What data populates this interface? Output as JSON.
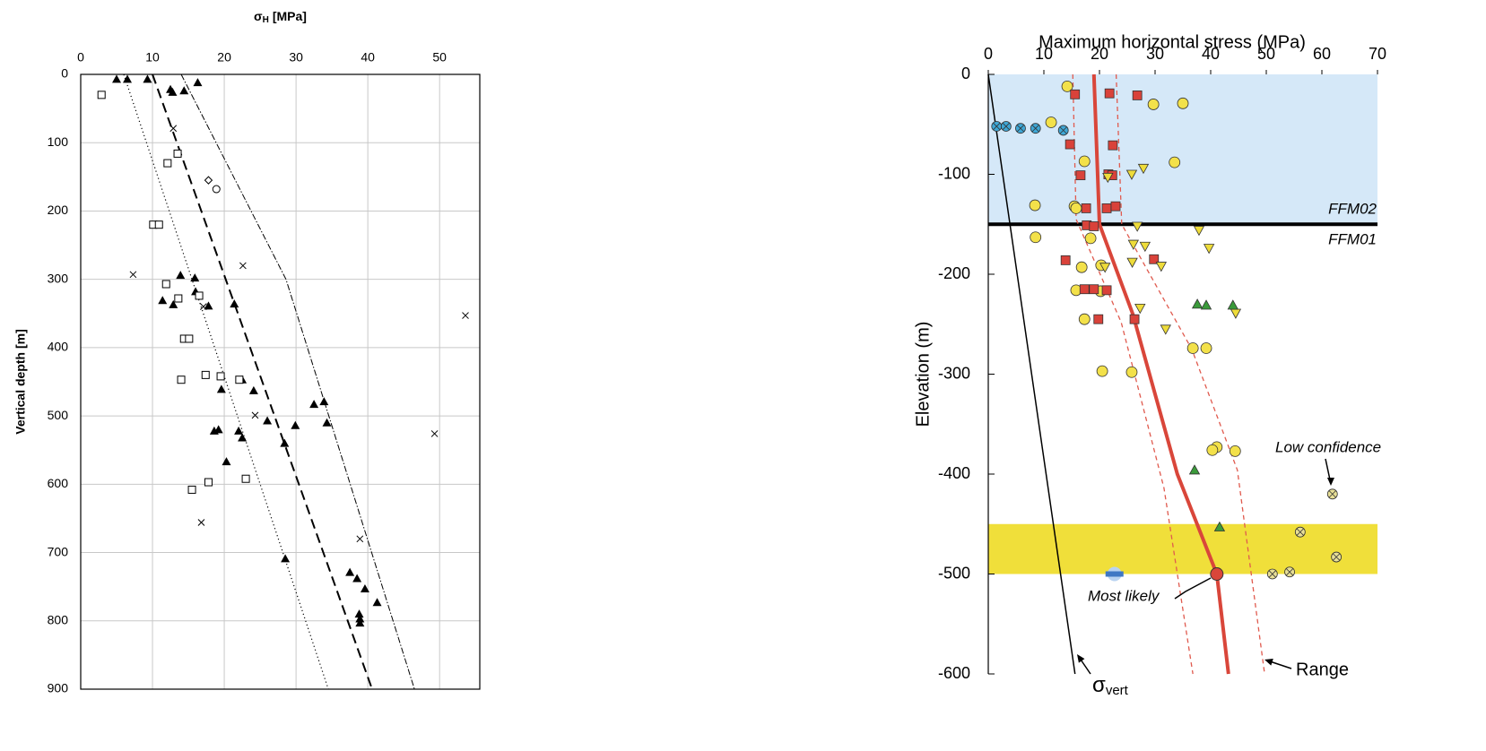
{
  "chart_data": [
    {
      "type": "scatter",
      "x_label": {
        "symbol": "σ",
        "subscript": "H",
        "unit": "[MPa]"
      },
      "y_label": "Vertical depth [m]",
      "xlim": [
        0,
        55.6
      ],
      "xticks": [
        0,
        10,
        20,
        30,
        40,
        50
      ],
      "ylim": [
        0,
        900
      ],
      "yticks": [
        0,
        100,
        200,
        300,
        400,
        500,
        600,
        700,
        800,
        900
      ],
      "y_inverted": true,
      "x_axis_position": "top",
      "grid": true,
      "series": [
        {
          "marker": "triangle",
          "color": "#000000",
          "x": [
            5,
            6.5,
            9.3,
            12.5,
            12.8,
            14.4,
            16.3,
            13.9,
            15.9,
            11.4,
            12.9,
            16,
            17.8,
            21.4,
            22.5,
            24.1,
            19.6,
            26,
            29.9,
            32.5,
            33.9,
            34.3,
            28.4,
            18.6,
            19.2,
            22,
            22.5,
            20.3,
            28.5,
            37.5,
            38.5,
            39.6,
            41.3,
            38.8,
            38.9,
            38.9
          ],
          "values": [
            7,
            7,
            7,
            22,
            26,
            24,
            12,
            294,
            298,
            331,
            337,
            318,
            339,
            336,
            447,
            463,
            461,
            507,
            514,
            483,
            479,
            510,
            540,
            522,
            520,
            522,
            532,
            567,
            709,
            729,
            738,
            753,
            773,
            790,
            797,
            803
          ]
        },
        {
          "marker": "square-open",
          "color": "#000000",
          "x": [
            2.9,
            12.1,
            13.5,
            10.1,
            10.9,
            11.9,
            13.6,
            16.5,
            14.4,
            15.1,
            14,
            17.4,
            19.5,
            22.1,
            23,
            17.8,
            15.5
          ],
          "values": [
            30,
            130,
            116,
            220,
            220,
            307,
            328,
            324,
            387,
            387,
            447,
            440,
            442,
            447,
            592,
            597,
            608
          ]
        },
        {
          "marker": "x",
          "color": "#000000",
          "x": [
            12.9,
            7.3,
            17.1,
            22.6,
            24.3,
            53.6,
            49.3,
            16.8,
            38.9
          ],
          "values": [
            79,
            293,
            340,
            280,
            499,
            353,
            526,
            656,
            680
          ]
        },
        {
          "marker": "diamond-open",
          "color": "#000000",
          "x": [
            17.8
          ],
          "values": [
            155
          ]
        },
        {
          "marker": "circle-open",
          "color": "#000000",
          "x": [
            18.9
          ],
          "values": [
            168
          ]
        },
        {
          "line": "dashed",
          "color": "#000000",
          "x": [
            10,
            40.6
          ],
          "values": [
            0,
            900
          ]
        },
        {
          "line": "dotted",
          "color": "#000000",
          "x": [
            6,
            34.5
          ],
          "values": [
            0,
            900
          ]
        },
        {
          "line": "dashdot",
          "color": "#000000",
          "x": [
            14,
            28.6,
            46.5
          ],
          "values": [
            0,
            300,
            900
          ]
        }
      ]
    },
    {
      "type": "scatter",
      "title": "Maximum horizontal stress (MPa)",
      "y_label": "Elevation (m)",
      "xlim": [
        0,
        70
      ],
      "xticks": [
        0,
        10,
        20,
        30,
        40,
        50,
        60,
        70
      ],
      "ylim": [
        -600,
        0
      ],
      "yticks": [
        0,
        -100,
        -200,
        -300,
        -400,
        -500,
        -600
      ],
      "x_axis_position": "top",
      "grid": false,
      "bands": [
        {
          "from": 0,
          "to": -150,
          "color": "#d5e8f8"
        },
        {
          "from": -450,
          "to": -500,
          "color": "#f0df3a"
        }
      ],
      "hlines": [
        {
          "value": -150,
          "color": "#000000"
        }
      ],
      "series": [
        {
          "line": "solid",
          "color": "#000000",
          "x": [
            0,
            15.6
          ],
          "values": [
            0,
            -600
          ]
        },
        {
          "line": "red-dashed",
          "color": "#e05a4e",
          "x": [
            15.2,
            15.8,
            23.9,
            31.6,
            36.8
          ],
          "values": [
            0,
            -145,
            -248,
            -414,
            -600
          ]
        },
        {
          "line": "red-dashed",
          "color": "#e05a4e",
          "x": [
            23,
            24,
            36.6,
            44.8,
            49.7
          ],
          "values": [
            0,
            -150,
            -275,
            -396,
            -600
          ]
        },
        {
          "line": "thick",
          "color": "#d9463a",
          "x": [
            19,
            20,
            26,
            34,
            41.1,
            43.2
          ],
          "values": [
            0,
            -150,
            -240,
            -400,
            -500,
            -600
          ]
        },
        {
          "marker": "circle",
          "color": "#f3e14a",
          "x": [
            14.2,
            29.7,
            35,
            11.3,
            17.3,
            33.5,
            8.4,
            15.5,
            15.8,
            8.5,
            18.4,
            16.8,
            20.3,
            15.8,
            20.2,
            17.3,
            20.5,
            25.8,
            36.8,
            39.2,
            41.1,
            40.3,
            44.4
          ],
          "values": [
            -12,
            -30,
            -29,
            -48,
            -87,
            -88,
            -131,
            -132,
            -134,
            -163,
            -164,
            -193,
            -191,
            -216,
            -217,
            -245,
            -297,
            -298,
            -274,
            -274,
            -373,
            -376,
            -377
          ]
        },
        {
          "marker": "square",
          "color": "#d9423a",
          "x": [
            15.6,
            21.8,
            26.8,
            14.7,
            22.4,
            16.6,
            21.6,
            22.3,
            17.6,
            21.3,
            22.9,
            17.7,
            19,
            13.9,
            29.8,
            17.3,
            19,
            21.3,
            19.8,
            26.3
          ],
          "values": [
            -20,
            -19,
            -21,
            -70,
            -71,
            -101,
            -100,
            -101,
            -134,
            -134,
            -132,
            -151,
            -152,
            -186,
            -185,
            -215,
            -215,
            -216,
            -245,
            -245
          ]
        },
        {
          "marker": "triangle-down",
          "color": "#eedc3a",
          "x": [
            21.5,
            25.8,
            27.9,
            26.8,
            26.1,
            28.2,
            37.9,
            39.7,
            21,
            25.9,
            31.1,
            27.3,
            31.9,
            44.5
          ],
          "values": [
            -103,
            -100,
            -94,
            -152,
            -170,
            -172,
            -156,
            -174,
            -193,
            -188,
            -192,
            -234,
            -255,
            -239
          ]
        },
        {
          "marker": "triangle",
          "color": "#3a9a3a",
          "x": [
            37.6,
            39.2,
            44,
            37.1,
            41.6
          ],
          "values": [
            -230,
            -231,
            -231,
            -396,
            -453
          ]
        },
        {
          "marker": "circle-x",
          "color": "#3fa7d6",
          "x": [
            1.5,
            3.2,
            5.8,
            8.5,
            13.5
          ],
          "values": [
            -52,
            -52,
            -54,
            -54,
            -56
          ]
        },
        {
          "marker": "circle-x",
          "color": "#e8df96",
          "x": [
            61.9,
            56.1,
            62.6,
            51.1,
            54.2
          ],
          "values": [
            -420,
            -458,
            -483,
            -500,
            -498
          ]
        },
        {
          "marker": "bar",
          "color": "#3f78c4",
          "x": [
            22.7
          ],
          "values": [
            -500
          ]
        },
        {
          "marker": "circle-big",
          "color": "#d9463a",
          "x": [
            41.1
          ],
          "values": [
            -500
          ]
        }
      ],
      "annotations": [
        {
          "text": "FFM02"
        },
        {
          "text": "FFM01"
        },
        {
          "text": "Low confidence"
        },
        {
          "text": "Most likely"
        },
        {
          "symbol": "σ",
          "subscript": "vert"
        },
        {
          "text": "Range"
        }
      ]
    }
  ]
}
